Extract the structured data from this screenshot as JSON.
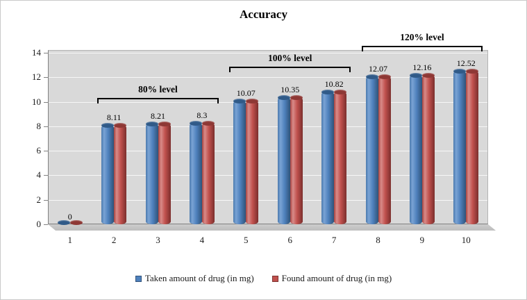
{
  "chart_data": {
    "type": "bar",
    "subtype": "3d-cylinder",
    "title": "Accuracy",
    "categories": [
      "1",
      "2",
      "3",
      "4",
      "5",
      "6",
      "7",
      "8",
      "9",
      "10"
    ],
    "series": [
      {
        "name": "Taken amount of drug (in mg)",
        "color": "#4f81bd",
        "values": [
          0,
          8.11,
          8.21,
          8.3,
          10.07,
          10.35,
          10.82,
          12.07,
          12.16,
          12.52
        ]
      },
      {
        "name": "Found amount of drug (in mg)",
        "color": "#c0504d",
        "values": [
          0,
          8.11,
          8.21,
          8.3,
          10.07,
          10.35,
          10.82,
          12.07,
          12.16,
          12.52
        ]
      }
    ],
    "data_labels": [
      "0",
      "8.11",
      "8.21",
      "8.3",
      "10.07",
      "10.35",
      "10.82",
      "12.07",
      "12.16",
      "12.52"
    ],
    "annotations": [
      {
        "label": "80% level",
        "from_category": "2",
        "to_category": "4"
      },
      {
        "label": "100% level",
        "from_category": "5",
        "to_category": "7"
      },
      {
        "label": "120% level",
        "from_category": "8",
        "to_category": "10"
      }
    ],
    "y_axis": {
      "min": 0,
      "max": 14,
      "ticks": [
        0,
        2,
        4,
        6,
        8,
        10,
        12,
        14
      ]
    },
    "grid": true,
    "legend_position": "bottom",
    "wall_color": "#d9d9d9"
  }
}
